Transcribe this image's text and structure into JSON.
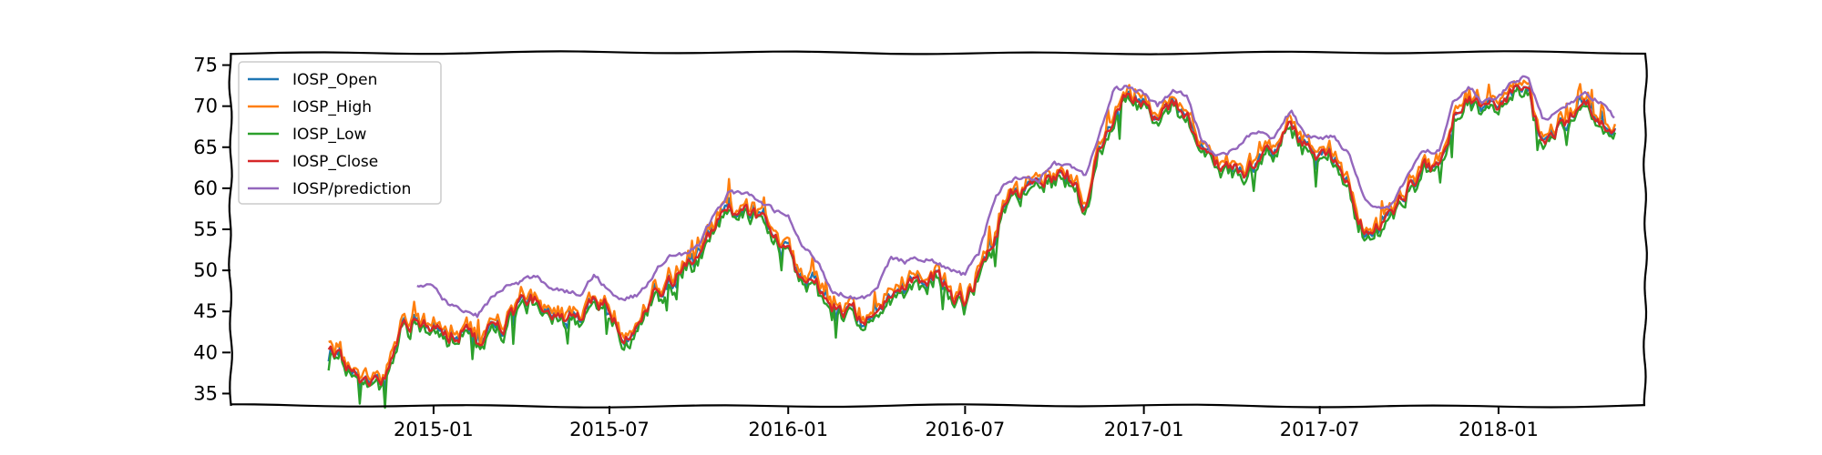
{
  "chart_data": {
    "type": "line",
    "title": "",
    "xlabel": "",
    "ylabel": "",
    "xlim": [
      "2014-06-06",
      "2018-06-01"
    ],
    "ylim": [
      33.5,
      76.5
    ],
    "yticks": [
      35,
      40,
      45,
      50,
      55,
      60,
      65,
      70,
      75
    ],
    "xticks": [
      "2015-01",
      "2015-07",
      "2016-01",
      "2016-07",
      "2017-01",
      "2017-07",
      "2018-01"
    ],
    "legend_position": "top-left",
    "colors": {
      "IOSP_Open": "#1f77b4",
      "IOSP_High": "#ff7f0e",
      "IOSP_Low": "#2ca02c",
      "IOSP_Close": "#d62728",
      "IOSP/prediction": "#9467bd"
    },
    "series": [
      {
        "name": "IOSP_Open"
      },
      {
        "name": "IOSP_High"
      },
      {
        "name": "IOSP_Low"
      },
      {
        "name": "IOSP_Close"
      },
      {
        "name": "IOSP/prediction"
      }
    ],
    "close_anchors": [
      [
        "2014-09-15",
        41.0
      ],
      [
        "2014-10-01",
        38.5
      ],
      [
        "2014-10-15",
        36.5
      ],
      [
        "2014-11-01",
        36.0
      ],
      [
        "2014-11-15",
        37.5
      ],
      [
        "2014-11-25",
        40.5
      ],
      [
        "2014-12-01",
        43.5
      ],
      [
        "2014-12-15",
        44.0
      ],
      [
        "2015-01-01",
        43.5
      ],
      [
        "2015-01-15",
        41.5
      ],
      [
        "2015-02-01",
        43.0
      ],
      [
        "2015-02-15",
        41.0
      ],
      [
        "2015-03-01",
        44.0
      ],
      [
        "2015-03-15",
        43.5
      ],
      [
        "2015-04-01",
        45.5
      ],
      [
        "2015-04-15",
        46.5
      ],
      [
        "2015-05-01",
        45.0
      ],
      [
        "2015-05-15",
        44.5
      ],
      [
        "2015-06-01",
        44.0
      ],
      [
        "2015-06-15",
        46.0
      ],
      [
        "2015-07-01",
        45.5
      ],
      [
        "2015-07-15",
        42.0
      ],
      [
        "2015-08-01",
        44.0
      ],
      [
        "2015-08-15",
        47.0
      ],
      [
        "2015-09-01",
        48.5
      ],
      [
        "2015-09-15",
        50.5
      ],
      [
        "2015-10-01",
        52.0
      ],
      [
        "2015-10-15",
        55.0
      ],
      [
        "2015-11-01",
        57.5
      ],
      [
        "2015-11-15",
        57.5
      ],
      [
        "2015-12-01",
        56.5
      ],
      [
        "2015-12-15",
        54.5
      ],
      [
        "2016-01-01",
        52.0
      ],
      [
        "2016-01-15",
        48.5
      ],
      [
        "2016-02-01",
        48.0
      ],
      [
        "2016-02-15",
        45.5
      ],
      [
        "2016-03-01",
        45.0
      ],
      [
        "2016-03-15",
        44.5
      ],
      [
        "2016-04-01",
        45.0
      ],
      [
        "2016-04-15",
        47.5
      ],
      [
        "2016-05-01",
        49.0
      ],
      [
        "2016-05-15",
        48.5
      ],
      [
        "2016-06-01",
        49.5
      ],
      [
        "2016-06-15",
        47.0
      ],
      [
        "2016-07-01",
        46.0
      ],
      [
        "2016-07-15",
        49.5
      ],
      [
        "2016-08-01",
        54.0
      ],
      [
        "2016-08-15",
        60.0
      ],
      [
        "2016-09-01",
        59.5
      ],
      [
        "2016-09-15",
        60.5
      ],
      [
        "2016-10-01",
        61.0
      ],
      [
        "2016-10-15",
        61.5
      ],
      [
        "2016-11-01",
        57.5
      ],
      [
        "2016-11-15",
        65.0
      ],
      [
        "2016-12-01",
        68.0
      ],
      [
        "2016-12-15",
        71.0
      ],
      [
        "2017-01-01",
        70.0
      ],
      [
        "2017-01-15",
        68.0
      ],
      [
        "2017-02-01",
        70.5
      ],
      [
        "2017-02-15",
        69.0
      ],
      [
        "2017-03-01",
        64.0
      ],
      [
        "2017-03-15",
        62.5
      ],
      [
        "2017-04-01",
        63.0
      ],
      [
        "2017-04-15",
        62.0
      ],
      [
        "2017-05-01",
        64.0
      ],
      [
        "2017-05-15",
        65.0
      ],
      [
        "2017-06-01",
        67.0
      ],
      [
        "2017-06-15",
        65.0
      ],
      [
        "2017-07-01",
        64.0
      ],
      [
        "2017-07-15",
        63.5
      ],
      [
        "2017-08-01",
        60.0
      ],
      [
        "2017-08-15",
        55.5
      ],
      [
        "2017-09-01",
        55.0
      ],
      [
        "2017-09-15",
        57.5
      ],
      [
        "2017-10-01",
        60.0
      ],
      [
        "2017-10-15",
        62.5
      ],
      [
        "2017-11-01",
        62.5
      ],
      [
        "2017-11-15",
        68.5
      ],
      [
        "2017-12-01",
        71.0
      ],
      [
        "2017-12-15",
        69.5
      ],
      [
        "2018-01-01",
        70.0
      ],
      [
        "2018-01-15",
        71.5
      ],
      [
        "2018-02-01",
        72.0
      ],
      [
        "2018-02-15",
        65.0
      ],
      [
        "2018-03-01",
        67.0
      ],
      [
        "2018-03-15",
        68.5
      ],
      [
        "2018-04-01",
        70.0
      ],
      [
        "2018-04-15",
        68.0
      ],
      [
        "2018-05-01",
        67.5
      ]
    ],
    "prediction_anchors": [
      [
        "2014-12-15",
        48.0
      ],
      [
        "2015-01-01",
        48.0
      ],
      [
        "2015-01-15",
        46.0
      ],
      [
        "2015-02-01",
        45.0
      ],
      [
        "2015-02-15",
        44.5
      ],
      [
        "2015-03-01",
        46.5
      ],
      [
        "2015-03-15",
        48.0
      ],
      [
        "2015-04-01",
        48.5
      ],
      [
        "2015-04-15",
        49.5
      ],
      [
        "2015-05-01",
        48.0
      ],
      [
        "2015-05-15",
        47.5
      ],
      [
        "2015-06-01",
        47.0
      ],
      [
        "2015-06-15",
        49.5
      ],
      [
        "2015-07-01",
        47.5
      ],
      [
        "2015-07-15",
        46.5
      ],
      [
        "2015-08-01",
        47.0
      ],
      [
        "2015-08-15",
        49.5
      ],
      [
        "2015-09-01",
        52.0
      ],
      [
        "2015-09-15",
        52.0
      ],
      [
        "2015-10-01",
        53.0
      ],
      [
        "2015-10-15",
        56.5
      ],
      [
        "2015-11-01",
        59.5
      ],
      [
        "2015-11-15",
        59.5
      ],
      [
        "2015-12-01",
        58.5
      ],
      [
        "2015-12-15",
        57.5
      ],
      [
        "2016-01-01",
        56.5
      ],
      [
        "2016-01-15",
        53.0
      ],
      [
        "2016-02-01",
        51.0
      ],
      [
        "2016-02-15",
        47.5
      ],
      [
        "2016-03-01",
        47.0
      ],
      [
        "2016-03-15",
        46.5
      ],
      [
        "2016-04-01",
        47.5
      ],
      [
        "2016-04-15",
        51.5
      ],
      [
        "2016-05-01",
        51.0
      ],
      [
        "2016-05-15",
        51.5
      ],
      [
        "2016-06-01",
        51.0
      ],
      [
        "2016-06-15",
        50.0
      ],
      [
        "2016-07-01",
        49.5
      ],
      [
        "2016-07-15",
        52.0
      ],
      [
        "2016-08-01",
        59.0
      ],
      [
        "2016-08-15",
        61.0
      ],
      [
        "2016-09-01",
        61.5
      ],
      [
        "2016-09-15",
        61.0
      ],
      [
        "2016-10-01",
        63.0
      ],
      [
        "2016-10-15",
        63.0
      ],
      [
        "2016-11-01",
        61.5
      ],
      [
        "2016-11-15",
        66.0
      ],
      [
        "2016-12-01",
        72.0
      ],
      [
        "2016-12-15",
        72.5
      ],
      [
        "2017-01-01",
        71.5
      ],
      [
        "2017-01-15",
        70.0
      ],
      [
        "2017-02-01",
        72.0
      ],
      [
        "2017-02-15",
        71.0
      ],
      [
        "2017-03-01",
        66.0
      ],
      [
        "2017-03-15",
        64.0
      ],
      [
        "2017-04-01",
        64.5
      ],
      [
        "2017-04-15",
        66.0
      ],
      [
        "2017-05-01",
        67.0
      ],
      [
        "2017-05-15",
        66.0
      ],
      [
        "2017-06-01",
        69.5
      ],
      [
        "2017-06-15",
        66.5
      ],
      [
        "2017-07-01",
        66.0
      ],
      [
        "2017-07-15",
        66.5
      ],
      [
        "2017-08-01",
        64.0
      ],
      [
        "2017-08-15",
        59.0
      ],
      [
        "2017-09-01",
        57.5
      ],
      [
        "2017-09-15",
        58.0
      ],
      [
        "2017-10-01",
        62.0
      ],
      [
        "2017-10-15",
        64.5
      ],
      [
        "2017-11-01",
        64.5
      ],
      [
        "2017-11-15",
        70.5
      ],
      [
        "2017-12-01",
        72.5
      ],
      [
        "2017-12-15",
        70.5
      ],
      [
        "2018-01-01",
        71.0
      ],
      [
        "2018-01-15",
        73.0
      ],
      [
        "2018-02-01",
        73.5
      ],
      [
        "2018-02-15",
        68.5
      ],
      [
        "2018-03-01",
        69.0
      ],
      [
        "2018-03-15",
        70.5
      ],
      [
        "2018-04-01",
        71.5
      ],
      [
        "2018-04-15",
        70.5
      ],
      [
        "2018-05-01",
        68.5
      ]
    ]
  }
}
